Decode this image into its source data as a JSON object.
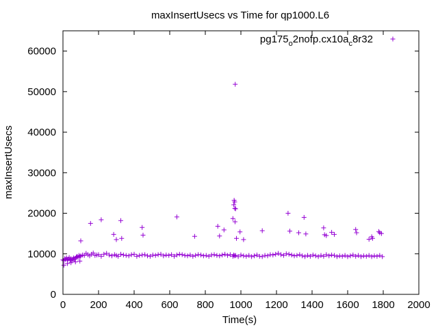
{
  "chart_data": {
    "type": "scatter",
    "title": "maxInsertUsecs vs Time for qp1000.L6",
    "xlabel": "Time(s)",
    "ylabel": "maxInsertUsecs",
    "xlim": [
      0,
      2000
    ],
    "ylim": [
      0,
      65000
    ],
    "x_ticks": [
      0,
      200,
      400,
      600,
      800,
      1000,
      1200,
      1400,
      1600,
      1800,
      2000
    ],
    "y_ticks": [
      0,
      10000,
      20000,
      30000,
      40000,
      50000,
      60000
    ],
    "grid": false,
    "legend_position": "top-right",
    "marker": "plus",
    "colors": {
      "series": "#9400d3",
      "axis": "#000000"
    },
    "legend": {
      "label_main": "pg175",
      "label_sub1": "o",
      "label_mid": "2nofp.cx10a",
      "label_sub2": "c",
      "label_end": "8r32"
    },
    "series": [
      {
        "color": "#9400d3",
        "x": [
          0,
          5,
          10,
          15,
          20,
          25,
          30,
          35,
          40,
          45,
          50,
          55,
          60,
          65,
          70,
          75,
          80,
          85,
          90,
          95,
          100,
          110,
          120,
          130,
          140,
          150,
          160,
          170,
          180,
          190,
          200,
          215,
          230,
          245,
          260,
          275,
          290,
          300,
          310,
          325,
          340,
          355,
          370,
          385,
          400,
          415,
          430,
          445,
          460,
          475,
          490,
          505,
          520,
          535,
          550,
          565,
          580,
          595,
          610,
          625,
          640,
          655,
          670,
          685,
          700,
          715,
          730,
          745,
          760,
          775,
          790,
          805,
          820,
          835,
          850,
          865,
          880,
          895,
          910,
          925,
          940,
          955,
          960,
          965,
          970,
          985,
          1000,
          1015,
          1030,
          1045,
          1060,
          1075,
          1090,
          1105,
          1120,
          1135,
          1150,
          1165,
          1180,
          1195,
          1210,
          1225,
          1240,
          1255,
          1270,
          1285,
          1300,
          1315,
          1330,
          1345,
          1360,
          1375,
          1390,
          1405,
          1420,
          1435,
          1450,
          1465,
          1480,
          1495,
          1510,
          1525,
          1540,
          1555,
          1570,
          1585,
          1600,
          1615,
          1630,
          1645,
          1660,
          1675,
          1690,
          1705,
          1720,
          1735,
          1750,
          1765,
          1780,
          1795,
          5,
          25,
          45,
          70,
          95,
          100,
          155,
          215,
          285,
          300,
          325,
          330,
          445,
          450,
          640,
          740,
          870,
          880,
          905,
          955,
          960,
          962,
          965,
          966,
          967,
          968,
          970,
          975,
          995,
          1015,
          1120,
          1265,
          1275,
          1325,
          1355,
          1365,
          1465,
          1470,
          1480,
          1510,
          1525,
          1645,
          1650,
          1720,
          1735,
          1740,
          1775,
          1780,
          1790
        ],
        "y": [
          8500,
          8300,
          8800,
          8600,
          9000,
          8400,
          8700,
          9100,
          8500,
          8800,
          8300,
          8700,
          9000,
          8600,
          8900,
          9200,
          9400,
          9100,
          9600,
          9300,
          9500,
          9700,
          9600,
          10100,
          9800,
          9500,
          9900,
          10200,
          9600,
          9700,
          9800,
          9400,
          9900,
          10100,
          9700,
          9500,
          9800,
          9600,
          9400,
          9900,
          9700,
          9600,
          9500,
          9800,
          9900,
          9400,
          9600,
          9700,
          9800,
          9500,
          9400,
          9700,
          9600,
          9800,
          9900,
          9500,
          9700,
          9600,
          9800,
          9400,
          9700,
          9900,
          9800,
          9600,
          9500,
          9700,
          9400,
          9600,
          9800,
          9700,
          9500,
          9600,
          9400,
          9700,
          9800,
          9600,
          9500,
          9700,
          9900,
          9600,
          9800,
          9400,
          9700,
          9500,
          9600,
          9300,
          9700,
          9500,
          9400,
          9600,
          9300,
          9500,
          9700,
          9400,
          9300,
          9600,
          9500,
          9800,
          9700,
          9900,
          10100,
          9800,
          9600,
          10000,
          9900,
          9700,
          9500,
          9600,
          9800,
          9500,
          9300,
          9600,
          9400,
          9700,
          9500,
          9300,
          9600,
          9400,
          9800,
          9500,
          9700,
          9600,
          9300,
          9500,
          9400,
          9600,
          9300,
          9500,
          9700,
          9400,
          9600,
          9300,
          9500,
          9400,
          9600,
          9300,
          9500,
          9400,
          9600,
          9300,
          7200,
          7600,
          7800,
          8000,
          8200,
          13200,
          17500,
          18400,
          14800,
          13500,
          18200,
          13800,
          16500,
          14600,
          19100,
          14300,
          16800,
          14400,
          15900,
          18700,
          22100,
          23200,
          22800,
          21200,
          17900,
          51800,
          21100,
          13800,
          15400,
          13500,
          15700,
          20000,
          15600,
          15200,
          19000,
          14900,
          16400,
          14700,
          14500,
          15300,
          14800,
          16000,
          15200,
          13600,
          14200,
          13800,
          15500,
          15200,
          15000
        ]
      }
    ]
  }
}
